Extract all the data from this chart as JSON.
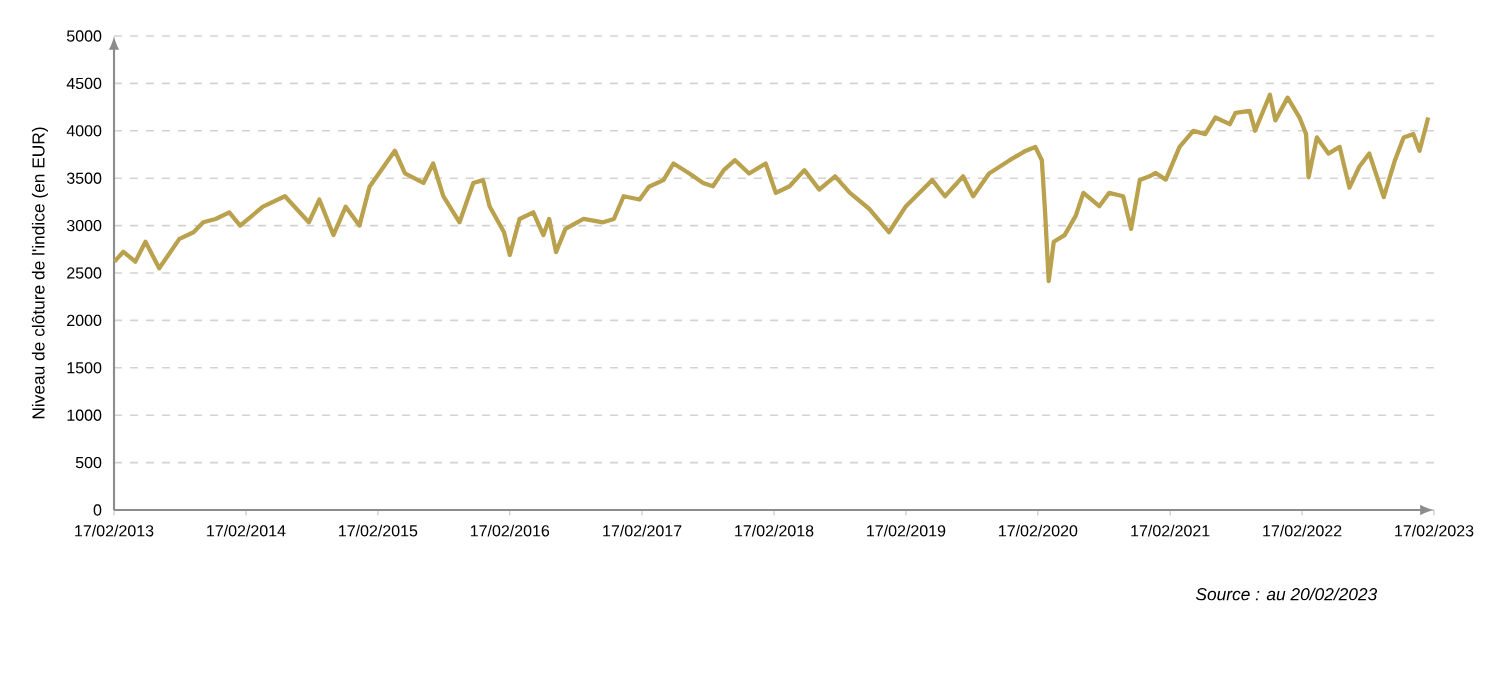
{
  "chart_data": {
    "type": "line",
    "ylabel": "Niveau de clôture de l'indice (en EUR)",
    "annotations": [
      "Source : au 20/02/2023"
    ],
    "x": [
      "2013-02-18",
      "2013-03-15",
      "2013-04-17",
      "2013-05-15",
      "2013-06-22",
      "2013-08-17",
      "2013-09-25",
      "2013-10-22",
      "2013-11-25",
      "2014-01-02",
      "2014-02-01",
      "2014-04-05",
      "2014-06-05",
      "2014-08-10",
      "2014-09-08",
      "2014-10-17",
      "2014-11-20",
      "2014-12-28",
      "2015-01-25",
      "2015-04-05",
      "2015-05-03",
      "2015-06-23",
      "2015-07-20",
      "2015-08-17",
      "2015-10-01",
      "2015-11-08",
      "2015-12-05",
      "2015-12-23",
      "2016-02-01",
      "2016-02-17",
      "2016-03-15",
      "2016-04-22",
      "2016-05-20",
      "2016-06-05",
      "2016-06-24",
      "2016-07-20",
      "2016-09-08",
      "2016-11-01",
      "2016-12-01",
      "2016-12-28",
      "2017-02-10",
      "2017-03-08",
      "2017-04-17",
      "2017-05-15",
      "2017-06-28",
      "2017-08-05",
      "2017-09-01",
      "2017-10-01",
      "2017-11-01",
      "2017-12-10",
      "2018-01-25",
      "2018-02-22",
      "2018-04-01",
      "2018-05-12",
      "2018-06-22",
      "2018-08-05",
      "2018-09-15",
      "2018-11-08",
      "2019-01-01",
      "2019-02-17",
      "2019-05-01",
      "2019-06-05",
      "2019-07-25",
      "2019-08-22",
      "2019-10-05",
      "2019-12-01",
      "2020-01-15",
      "2020-02-10",
      "2020-02-28",
      "2020-03-08",
      "2020-03-18",
      "2020-04-01",
      "2020-05-01",
      "2020-06-01",
      "2020-06-22",
      "2020-08-05",
      "2020-09-01",
      "2020-10-10",
      "2020-11-01",
      "2020-11-25",
      "2020-12-22",
      "2021-01-08",
      "2021-02-05",
      "2021-03-15",
      "2021-04-22",
      "2021-05-25",
      "2021-06-22",
      "2021-08-01",
      "2021-08-17",
      "2021-09-25",
      "2021-10-10",
      "2021-11-20",
      "2021-12-05",
      "2022-01-08",
      "2022-02-10",
      "2022-02-28",
      "2022-03-07",
      "2022-03-30",
      "2022-05-01",
      "2022-06-01",
      "2022-06-28",
      "2022-07-25",
      "2022-08-22",
      "2022-10-01",
      "2022-11-01",
      "2022-11-25",
      "2022-12-22",
      "2023-01-08",
      "2023-02-01"
    ],
    "series": [
      {
        "color": "#b9a14d",
        "values": [
          2620,
          2724,
          2620,
          2830,
          2550,
          2860,
          2930,
          3035,
          3070,
          3140,
          3000,
          3200,
          3310,
          3035,
          3275,
          2900,
          3200,
          3000,
          3410,
          3790,
          3550,
          3450,
          3655,
          3310,
          3035,
          3450,
          3480,
          3205,
          2930,
          2690,
          3070,
          3140,
          2900,
          3070,
          2720,
          2965,
          3070,
          3035,
          3070,
          3310,
          3275,
          3410,
          3480,
          3655,
          3550,
          3450,
          3415,
          3585,
          3690,
          3550,
          3655,
          3345,
          3415,
          3585,
          3380,
          3520,
          3345,
          3175,
          2930,
          3205,
          3480,
          3310,
          3520,
          3310,
          3550,
          3690,
          3790,
          3830,
          3690,
          3140,
          2415,
          2830,
          2900,
          3105,
          3345,
          3205,
          3345,
          3310,
          2965,
          3480,
          3520,
          3555,
          3485,
          3830,
          4000,
          3965,
          4140,
          4070,
          4190,
          4210,
          4000,
          4380,
          4110,
          4350,
          4140,
          3965,
          3510,
          3930,
          3760,
          3830,
          3400,
          3620,
          3760,
          3300,
          3690,
          3930,
          3965,
          3790,
          4140
        ]
      }
    ],
    "xlim": [
      "2013-02-17",
      "2023-02-17"
    ],
    "xticks": [
      {
        "value": "2013-02-17",
        "label": "17/02/2013"
      },
      {
        "value": "2014-02-17",
        "label": "17/02/2014"
      },
      {
        "value": "2015-02-17",
        "label": "17/02/2015"
      },
      {
        "value": "2016-02-17",
        "label": "17/02/2016"
      },
      {
        "value": "2017-02-17",
        "label": "17/02/2017"
      },
      {
        "value": "2018-02-17",
        "label": "17/02/2018"
      },
      {
        "value": "2019-02-17",
        "label": "17/02/2019"
      },
      {
        "value": "2020-02-17",
        "label": "17/02/2020"
      },
      {
        "value": "2021-02-17",
        "label": "17/02/2021"
      },
      {
        "value": "2022-02-17",
        "label": "17/02/2022"
      },
      {
        "value": "2023-02-17",
        "label": "17/02/2023"
      }
    ],
    "ylim": [
      0,
      5000
    ],
    "yticks": [
      0,
      500,
      1000,
      1500,
      2000,
      2500,
      3000,
      3500,
      4000,
      4500,
      5000
    ],
    "grid": "y"
  }
}
